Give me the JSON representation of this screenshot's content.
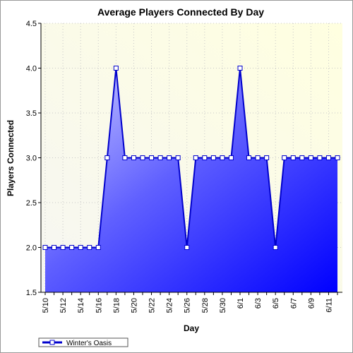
{
  "chart_data": {
    "type": "area",
    "title": "Average Players Connected By Day",
    "xlabel": "Day",
    "ylabel": "Players Connected",
    "ylim": [
      1.5,
      4.5
    ],
    "yticks": [
      "1.5",
      "2.0",
      "2.5",
      "3.0",
      "3.5",
      "4.0",
      "4.5"
    ],
    "xtick_labels": [
      "5/10",
      "5/12",
      "5/14",
      "5/16",
      "5/18",
      "5/20",
      "5/22",
      "5/24",
      "5/26",
      "5/28",
      "5/30",
      "6/1",
      "6/3",
      "6/5",
      "6/7",
      "6/9",
      "6/11"
    ],
    "categories": [
      "5/10",
      "5/11",
      "5/12",
      "5/13",
      "5/14",
      "5/15",
      "5/16",
      "5/17",
      "5/18",
      "5/19",
      "5/20",
      "5/21",
      "5/22",
      "5/23",
      "5/24",
      "5/25",
      "5/26",
      "5/27",
      "5/28",
      "5/29",
      "5/30",
      "5/31",
      "6/1",
      "6/2",
      "6/3",
      "6/4",
      "6/5",
      "6/6",
      "6/7",
      "6/8",
      "6/9",
      "6/10",
      "6/11",
      "6/12"
    ],
    "series": [
      {
        "name": "Winter's Oasis",
        "values": [
          2,
          2,
          2,
          2,
          2,
          2,
          2,
          3,
          4,
          3,
          3,
          3,
          3,
          3,
          3,
          3,
          2,
          3,
          3,
          3,
          3,
          3,
          4,
          3,
          3,
          3,
          2,
          3,
          3,
          3,
          3,
          3,
          3,
          3
        ]
      }
    ],
    "grid": true,
    "legend_position": "bottom-left",
    "colors": {
      "line": "#0000cc",
      "fill_light": "#c8c8ff",
      "fill_dark": "#0000ff",
      "plot_bg_light": "#ffffe0",
      "plot_bg_dark": "#f8f8f8"
    }
  }
}
